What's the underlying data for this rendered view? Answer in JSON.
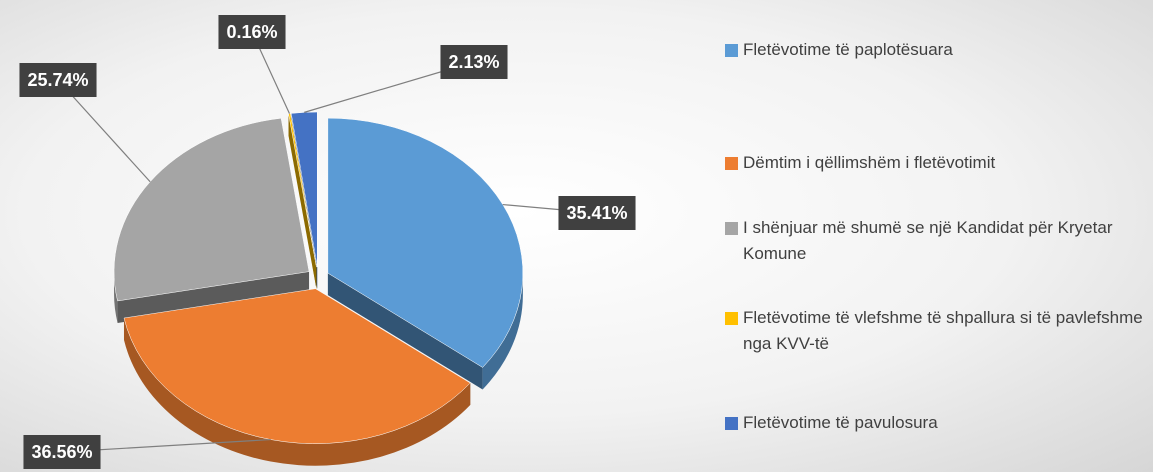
{
  "chart_data": {
    "type": "pie",
    "categories": [
      "Fletëvotime të paplotësuara",
      "Dëmtim i qëllimshëm i fletëvotimit",
      "I shënjuar më shumë se një Kandidat për Kryetar Komune",
      "Fletëvotime të vlefshme të shpallura si të pavlefshme nga KVV-të",
      "Fletëvotime të pavulosura"
    ],
    "values": [
      35.41,
      36.56,
      25.74,
      0.16,
      2.13
    ],
    "value_labels": [
      "35.41%",
      "36.56%",
      "25.74%",
      "0.16%",
      "2.13%"
    ],
    "colors": [
      "#5b9bd5",
      "#ed7d31",
      "#a5a5a5",
      "#ffc000",
      "#4472c4"
    ],
    "legend": "right"
  }
}
